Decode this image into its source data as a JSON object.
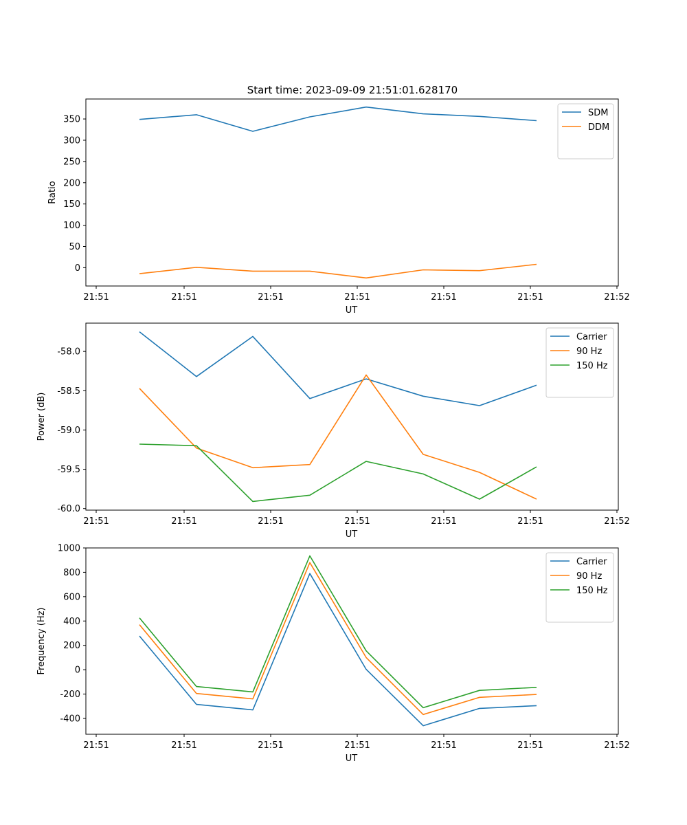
{
  "figure_title": "Start time: 2023-09-09 21:51:01.628170",
  "colors": {
    "c0": "#1f77b4",
    "c1": "#ff7f0e",
    "c2": "#2ca02c"
  },
  "chart_data": [
    {
      "type": "line",
      "title": "Start time: 2023-09-09 21:51:01.628170",
      "xlabel": "UT",
      "ylabel": "Ratio",
      "xticks": [
        "21:51",
        "21:51",
        "21:51",
        "21:51",
        "21:51",
        "21:51",
        "21:52"
      ],
      "yticks": [
        "0",
        "50",
        "100",
        "150",
        "200",
        "250",
        "300",
        "350"
      ],
      "ylim": [
        -43,
        397
      ],
      "legend_position": "upper right",
      "series": [
        {
          "name": "SDM",
          "color": "#1f77b4",
          "values": [
            349,
            360,
            321,
            355,
            378,
            362,
            356,
            346
          ]
        },
        {
          "name": "DDM",
          "color": "#ff7f0e",
          "values": [
            -14,
            1,
            -8,
            -8,
            -24,
            -5,
            -7,
            8
          ]
        }
      ]
    },
    {
      "type": "line",
      "title": "",
      "xlabel": "UT",
      "ylabel": "Power (dB)",
      "xticks": [
        "21:51",
        "21:51",
        "21:51",
        "21:51",
        "21:51",
        "21:51",
        "21:52"
      ],
      "yticks": [
        "-60.0",
        "-59.5",
        "-59.0",
        "-58.5",
        "-58.0"
      ],
      "ylim": [
        -60.02,
        -57.64
      ],
      "legend_position": "upper right",
      "series": [
        {
          "name": "Carrier",
          "color": "#1f77b4",
          "values": [
            -57.75,
            -58.32,
            -57.81,
            -58.6,
            -58.35,
            -58.57,
            -58.69,
            -58.43
          ]
        },
        {
          "name": "90 Hz",
          "color": "#ff7f0e",
          "values": [
            -58.47,
            -59.23,
            -59.48,
            -59.44,
            -58.3,
            -59.31,
            -59.54,
            -59.88
          ]
        },
        {
          "name": "150 Hz",
          "color": "#2ca02c",
          "values": [
            -59.18,
            -59.2,
            -59.91,
            -59.83,
            -59.4,
            -59.56,
            -59.88,
            -59.47
          ]
        }
      ]
    },
    {
      "type": "line",
      "title": "",
      "xlabel": "UT",
      "ylabel": "Frequency (Hz)",
      "xticks": [
        "21:51",
        "21:51",
        "21:51",
        "21:51",
        "21:51",
        "21:51",
        "21:52"
      ],
      "yticks": [
        "-400",
        "-200",
        "0",
        "200",
        "400",
        "600",
        "800",
        "1000"
      ],
      "ylim": [
        -530,
        1000
      ],
      "legend_position": "upper right",
      "series": [
        {
          "name": "Carrier",
          "color": "#1f77b4",
          "values": [
            277,
            -285,
            -330,
            790,
            3,
            -460,
            -318,
            -295
          ]
        },
        {
          "name": "90 Hz",
          "color": "#ff7f0e",
          "values": [
            370,
            -195,
            -240,
            880,
            100,
            -368,
            -227,
            -203
          ]
        },
        {
          "name": "150 Hz",
          "color": "#2ca02c",
          "values": [
            425,
            -138,
            -182,
            935,
            155,
            -312,
            -170,
            -145
          ]
        }
      ]
    }
  ]
}
